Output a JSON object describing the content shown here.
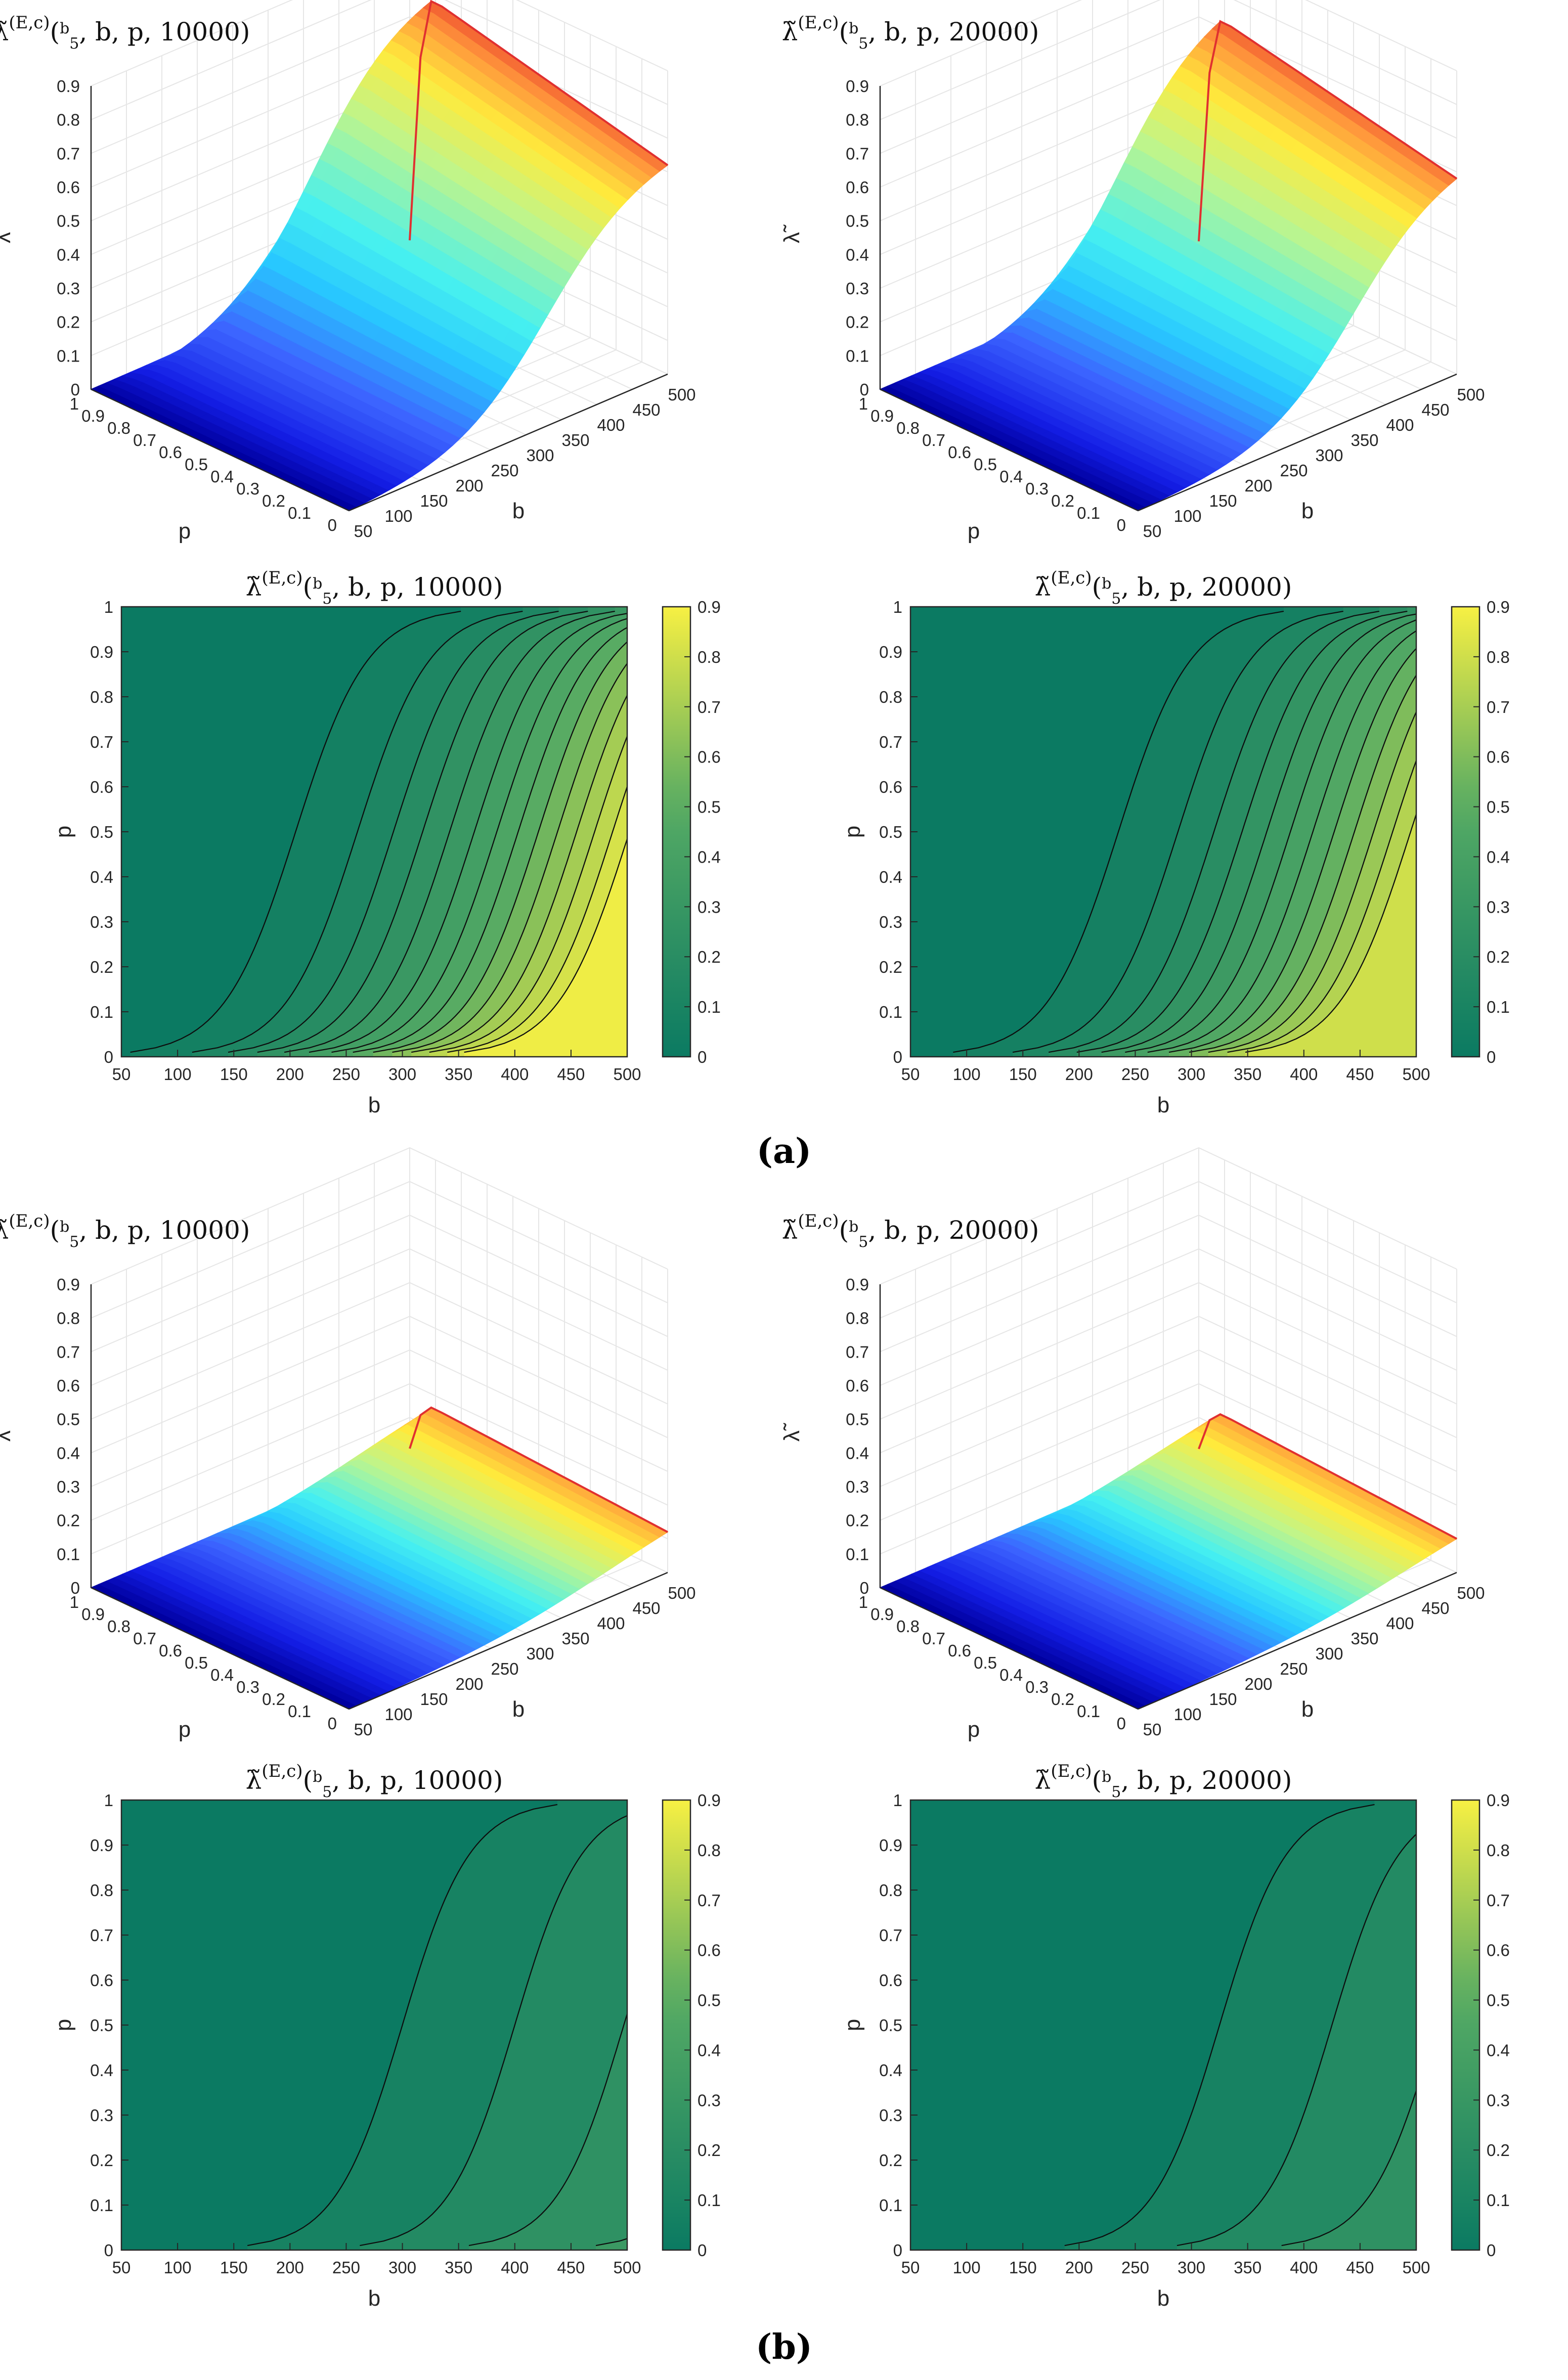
{
  "figure": {
    "panel_labels": [
      "(a)",
      "(b)"
    ],
    "colors": {
      "contour_low": "#0b7a62",
      "contour_high": "#f7f043",
      "contour_line": "#0d0d0d",
      "axis": "#262626",
      "grid": "#e6e6e6"
    }
  },
  "chart_data": [
    {
      "id": "a-surface-10000",
      "type": "surface3d",
      "title": {
        "main": "λ̃",
        "superscript": "(E,c)",
        "args_prefix": "(",
        "frac_num": "b",
        "frac_den": "5",
        "args_suffix": ", b, p, 10000)"
      },
      "xlabel": "b",
      "ylabel": "p",
      "zlabel": "λ̃",
      "xlim": [
        50,
        500
      ],
      "ylim": [
        0,
        1
      ],
      "zlim": [
        0,
        0.9
      ],
      "xticks": [
        "50",
        "100",
        "150",
        "200",
        "250",
        "300",
        "350",
        "400",
        "450",
        "500"
      ],
      "yticks": [
        "0",
        "0.1",
        "0.2",
        "0.3",
        "0.4",
        "0.5",
        "0.6",
        "0.7",
        "0.8",
        "0.9",
        "1"
      ],
      "zticks": [
        "0",
        "0.1",
        "0.2",
        "0.3",
        "0.4",
        "0.5",
        "0.6",
        "0.7",
        "0.8",
        "0.9"
      ],
      "model": {
        "zmax": 0.78,
        "edge_max": 0.62,
        "b_mid": 330,
        "b_width": 62,
        "p_mid": 0.9,
        "p_width": 0.04
      },
      "colormap": "jet"
    },
    {
      "id": "a-surface-20000",
      "type": "surface3d",
      "title": {
        "main": "λ̃",
        "superscript": "(E,c)",
        "args_prefix": "(",
        "frac_num": "b",
        "frac_den": "5",
        "args_suffix": ", b, p, 20000)"
      },
      "xlabel": "b",
      "ylabel": "p",
      "zlabel": "λ̃",
      "xlim": [
        50,
        500
      ],
      "ylim": [
        0,
        1
      ],
      "zlim": [
        0,
        0.9
      ],
      "xticks": [
        "50",
        "100",
        "150",
        "200",
        "250",
        "300",
        "350",
        "400",
        "450",
        "500"
      ],
      "yticks": [
        "0",
        "0.1",
        "0.2",
        "0.3",
        "0.4",
        "0.5",
        "0.6",
        "0.7",
        "0.8",
        "0.9",
        "1"
      ],
      "zticks": [
        "0",
        "0.1",
        "0.2",
        "0.3",
        "0.4",
        "0.5",
        "0.6",
        "0.7",
        "0.8",
        "0.9"
      ],
      "model": {
        "zmax": 0.72,
        "edge_max": 0.58,
        "b_mid": 355,
        "b_width": 60,
        "p_mid": 0.9,
        "p_width": 0.04
      },
      "colormap": "jet"
    },
    {
      "id": "a-contour-10000",
      "type": "contourf",
      "title": {
        "main": "λ̃",
        "superscript": "(E,c)",
        "args_prefix": "(",
        "frac_num": "b",
        "frac_den": "5",
        "args_suffix": ", b, p, 10000)"
      },
      "xlabel": "b",
      "ylabel": "p",
      "xlim": [
        50,
        500
      ],
      "ylim": [
        0,
        1
      ],
      "xticks": [
        "50",
        "100",
        "150",
        "200",
        "250",
        "300",
        "350",
        "400",
        "450",
        "500"
      ],
      "yticks": [
        "0",
        "0.1",
        "0.2",
        "0.3",
        "0.4",
        "0.5",
        "0.6",
        "0.7",
        "0.8",
        "0.9",
        "1"
      ],
      "colorbar": {
        "limits": [
          0,
          0.9
        ],
        "ticks": [
          "0",
          "0.1",
          "0.2",
          "0.3",
          "0.4",
          "0.5",
          "0.6",
          "0.7",
          "0.8",
          "0.9"
        ]
      },
      "contour_lines_b_at_p_half": [
        205,
        260,
        292,
        318,
        342,
        364,
        384,
        403,
        421,
        438,
        455,
        471,
        487,
        502
      ],
      "level_step": 0.05,
      "max_value_at_b500_p0": 0.55,
      "sigmoid_width": 32
    },
    {
      "id": "a-contour-20000",
      "type": "contourf",
      "title": {
        "main": "λ̃",
        "superscript": "(E,c)",
        "args_prefix": "(",
        "frac_num": "b",
        "frac_den": "5",
        "args_suffix": ", b, p, 20000)"
      },
      "xlabel": "b",
      "ylabel": "p",
      "xlim": [
        50,
        500
      ],
      "ylim": [
        0,
        1
      ],
      "xticks": [
        "50",
        "100",
        "150",
        "200",
        "250",
        "300",
        "350",
        "400",
        "450",
        "500"
      ],
      "yticks": [
        "0",
        "0.1",
        "0.2",
        "0.3",
        "0.4",
        "0.5",
        "0.6",
        "0.7",
        "0.8",
        "0.9",
        "1"
      ],
      "colorbar": {
        "limits": [
          0,
          0.9
        ],
        "ticks": [
          "0",
          "0.1",
          "0.2",
          "0.3",
          "0.4",
          "0.5",
          "0.6",
          "0.7",
          "0.8",
          "0.9"
        ]
      },
      "contour_lines_b_at_p_half": [
        235,
        288,
        320,
        345,
        367,
        388,
        408,
        427,
        445,
        462,
        479,
        495
      ],
      "level_step": 0.05,
      "max_value_at_b500_p0": 0.5,
      "sigmoid_width": 32
    },
    {
      "id": "b-surface-10000",
      "type": "surface3d",
      "title": {
        "main": "λ̃",
        "superscript": "(E,c)",
        "args_prefix": "(",
        "frac_num": "b",
        "frac_den": "5",
        "args_suffix": ", b, p, 10000)"
      },
      "xlabel": "b",
      "ylabel": "p",
      "zlabel": "λ̃",
      "xlim": [
        50,
        500
      ],
      "ylim": [
        0,
        1
      ],
      "zlim": [
        0,
        0.9
      ],
      "xticks": [
        "50",
        "100",
        "150",
        "200",
        "250",
        "300",
        "350",
        "400",
        "450",
        "500"
      ],
      "yticks": [
        "0",
        "0.1",
        "0.2",
        "0.3",
        "0.4",
        "0.5",
        "0.6",
        "0.7",
        "0.8",
        "0.9",
        "1"
      ],
      "zticks": [
        "0",
        "0.1",
        "0.2",
        "0.3",
        "0.4",
        "0.5",
        "0.6",
        "0.7",
        "0.8",
        "0.9"
      ],
      "model": {
        "zmax": 0.16,
        "edge_max": 0.12,
        "b_mid": 420,
        "b_width": 90,
        "p_mid": 0.9,
        "p_width": 0.04
      },
      "colormap": "jet"
    },
    {
      "id": "b-surface-20000",
      "type": "surface3d",
      "title": {
        "main": "λ̃",
        "superscript": "(E,c)",
        "args_prefix": "(",
        "frac_num": "b",
        "frac_den": "5",
        "args_suffix": ", b, p, 20000)"
      },
      "xlabel": "b",
      "ylabel": "p",
      "zlabel": "λ̃",
      "xlim": [
        50,
        500
      ],
      "ylim": [
        0,
        1
      ],
      "zlim": [
        0,
        0.9
      ],
      "xticks": [
        "50",
        "100",
        "150",
        "200",
        "250",
        "300",
        "350",
        "400",
        "450",
        "500"
      ],
      "yticks": [
        "0",
        "0.1",
        "0.2",
        "0.3",
        "0.4",
        "0.5",
        "0.6",
        "0.7",
        "0.8",
        "0.9",
        "1"
      ],
      "zticks": [
        "0",
        "0.1",
        "0.2",
        "0.3",
        "0.4",
        "0.5",
        "0.6",
        "0.7",
        "0.8",
        "0.9"
      ],
      "model": {
        "zmax": 0.14,
        "edge_max": 0.1,
        "b_mid": 430,
        "b_width": 90,
        "p_mid": 0.9,
        "p_width": 0.04
      },
      "colormap": "jet"
    },
    {
      "id": "b-contour-10000",
      "type": "contourf",
      "title": {
        "main": "λ̃",
        "superscript": "(E,c)",
        "args_prefix": "(",
        "frac_num": "b",
        "frac_den": "5",
        "args_suffix": ", b, p, 10000)"
      },
      "xlabel": "b",
      "ylabel": "p",
      "xlim": [
        50,
        500
      ],
      "ylim": [
        0,
        1
      ],
      "xticks": [
        "50",
        "100",
        "150",
        "200",
        "250",
        "300",
        "350",
        "400",
        "450",
        "500"
      ],
      "yticks": [
        "0",
        "0.1",
        "0.2",
        "0.3",
        "0.4",
        "0.5",
        "0.6",
        "0.7",
        "0.8",
        "0.9",
        "1"
      ],
      "colorbar": {
        "limits": [
          0,
          0.9
        ],
        "ticks": [
          "0",
          "0.1",
          "0.2",
          "0.3",
          "0.4",
          "0.5",
          "0.6",
          "0.7",
          "0.8",
          "0.9"
        ]
      },
      "contour_lines_b_at_p_half": [
        300,
        400,
        497,
        610
      ],
      "level_step": 0.05,
      "max_value_at_b500_p0": 0.2,
      "sigmoid_width": 30
    },
    {
      "id": "b-contour-20000",
      "type": "contourf",
      "title": {
        "main": "λ̃",
        "superscript": "(E,c)",
        "args_prefix": "(",
        "frac_num": "b",
        "frac_den": "5",
        "args_suffix": ", b, p, 20000)"
      },
      "xlabel": "b",
      "ylabel": "p",
      "xlim": [
        50,
        500
      ],
      "ylim": [
        0,
        1
      ],
      "xticks": [
        "50",
        "100",
        "150",
        "200",
        "250",
        "300",
        "350",
        "400",
        "450",
        "500"
      ],
      "yticks": [
        "0",
        "0.1",
        "0.2",
        "0.3",
        "0.4",
        "0.5",
        "0.6",
        "0.7",
        "0.8",
        "0.9",
        "1"
      ],
      "colorbar": {
        "limits": [
          0,
          0.9
        ],
        "ticks": [
          "0",
          "0.1",
          "0.2",
          "0.3",
          "0.4",
          "0.5",
          "0.6",
          "0.7",
          "0.8",
          "0.9"
        ]
      },
      "contour_lines_b_at_p_half": [
        325,
        425,
        518
      ],
      "level_step": 0.05,
      "max_value_at_b500_p0": 0.15,
      "sigmoid_width": 30
    }
  ]
}
